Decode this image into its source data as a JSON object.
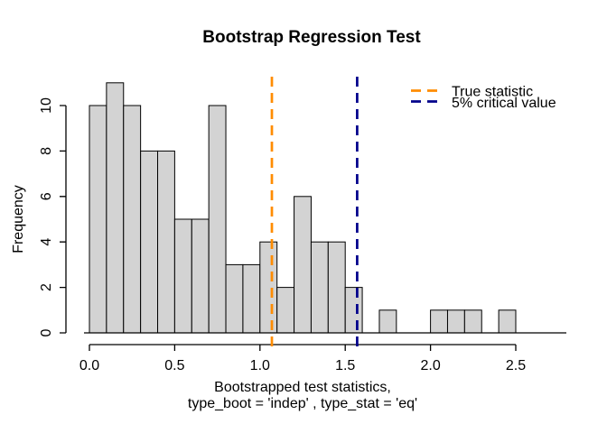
{
  "chart_data": {
    "type": "bar",
    "subtype": "histogram",
    "title": "Bootstrap Regression Test",
    "ylabel": "Frequency",
    "xlabel_lines": [
      "Bootstrapped test statistics,",
      "type_boot = 'indep' , type_stat = 'eq'"
    ],
    "bins": {
      "start": 0.0,
      "width": 0.1
    },
    "counts": [
      10,
      11,
      10,
      8,
      8,
      5,
      5,
      10,
      3,
      3,
      4,
      2,
      6,
      4,
      4,
      2,
      0,
      1,
      0,
      0,
      1,
      1,
      1,
      0,
      1
    ],
    "xlim": [
      0,
      2.5
    ],
    "ylim": [
      0,
      11
    ],
    "grid": false,
    "x_ticks": [
      {
        "value": 0.0,
        "label": "0.0"
      },
      {
        "value": 0.5,
        "label": "0.5"
      },
      {
        "value": 1.0,
        "label": "1.0"
      },
      {
        "value": 1.5,
        "label": "1.5"
      },
      {
        "value": 2.0,
        "label": "2.0"
      },
      {
        "value": 2.5,
        "label": "2.5"
      }
    ],
    "y_ticks": [
      {
        "value": 0,
        "label": "0"
      },
      {
        "value": 2,
        "label": "2"
      },
      {
        "value": 4,
        "label": "4"
      },
      {
        "value": 6,
        "label": "6"
      },
      {
        "value": 8,
        "label": "8"
      },
      {
        "value": 10,
        "label": "10"
      }
    ],
    "vlines": [
      {
        "name": "true-statistic",
        "value": 1.07,
        "color": "#FF8C00",
        "style": "dashed"
      },
      {
        "name": "critical-value-5pct",
        "value": 1.57,
        "color": "#00008B",
        "style": "dashed"
      }
    ],
    "legend_position": "top-right",
    "legend": [
      {
        "label": "True statistic",
        "color": "#FF8C00"
      },
      {
        "label": "5% critical value",
        "color": "#00008B"
      }
    ],
    "colors": {
      "bar_fill": "#D3D3D3",
      "bar_stroke": "#000000",
      "axis": "#000000",
      "text": "#000000",
      "background": "#FFFFFF"
    }
  }
}
